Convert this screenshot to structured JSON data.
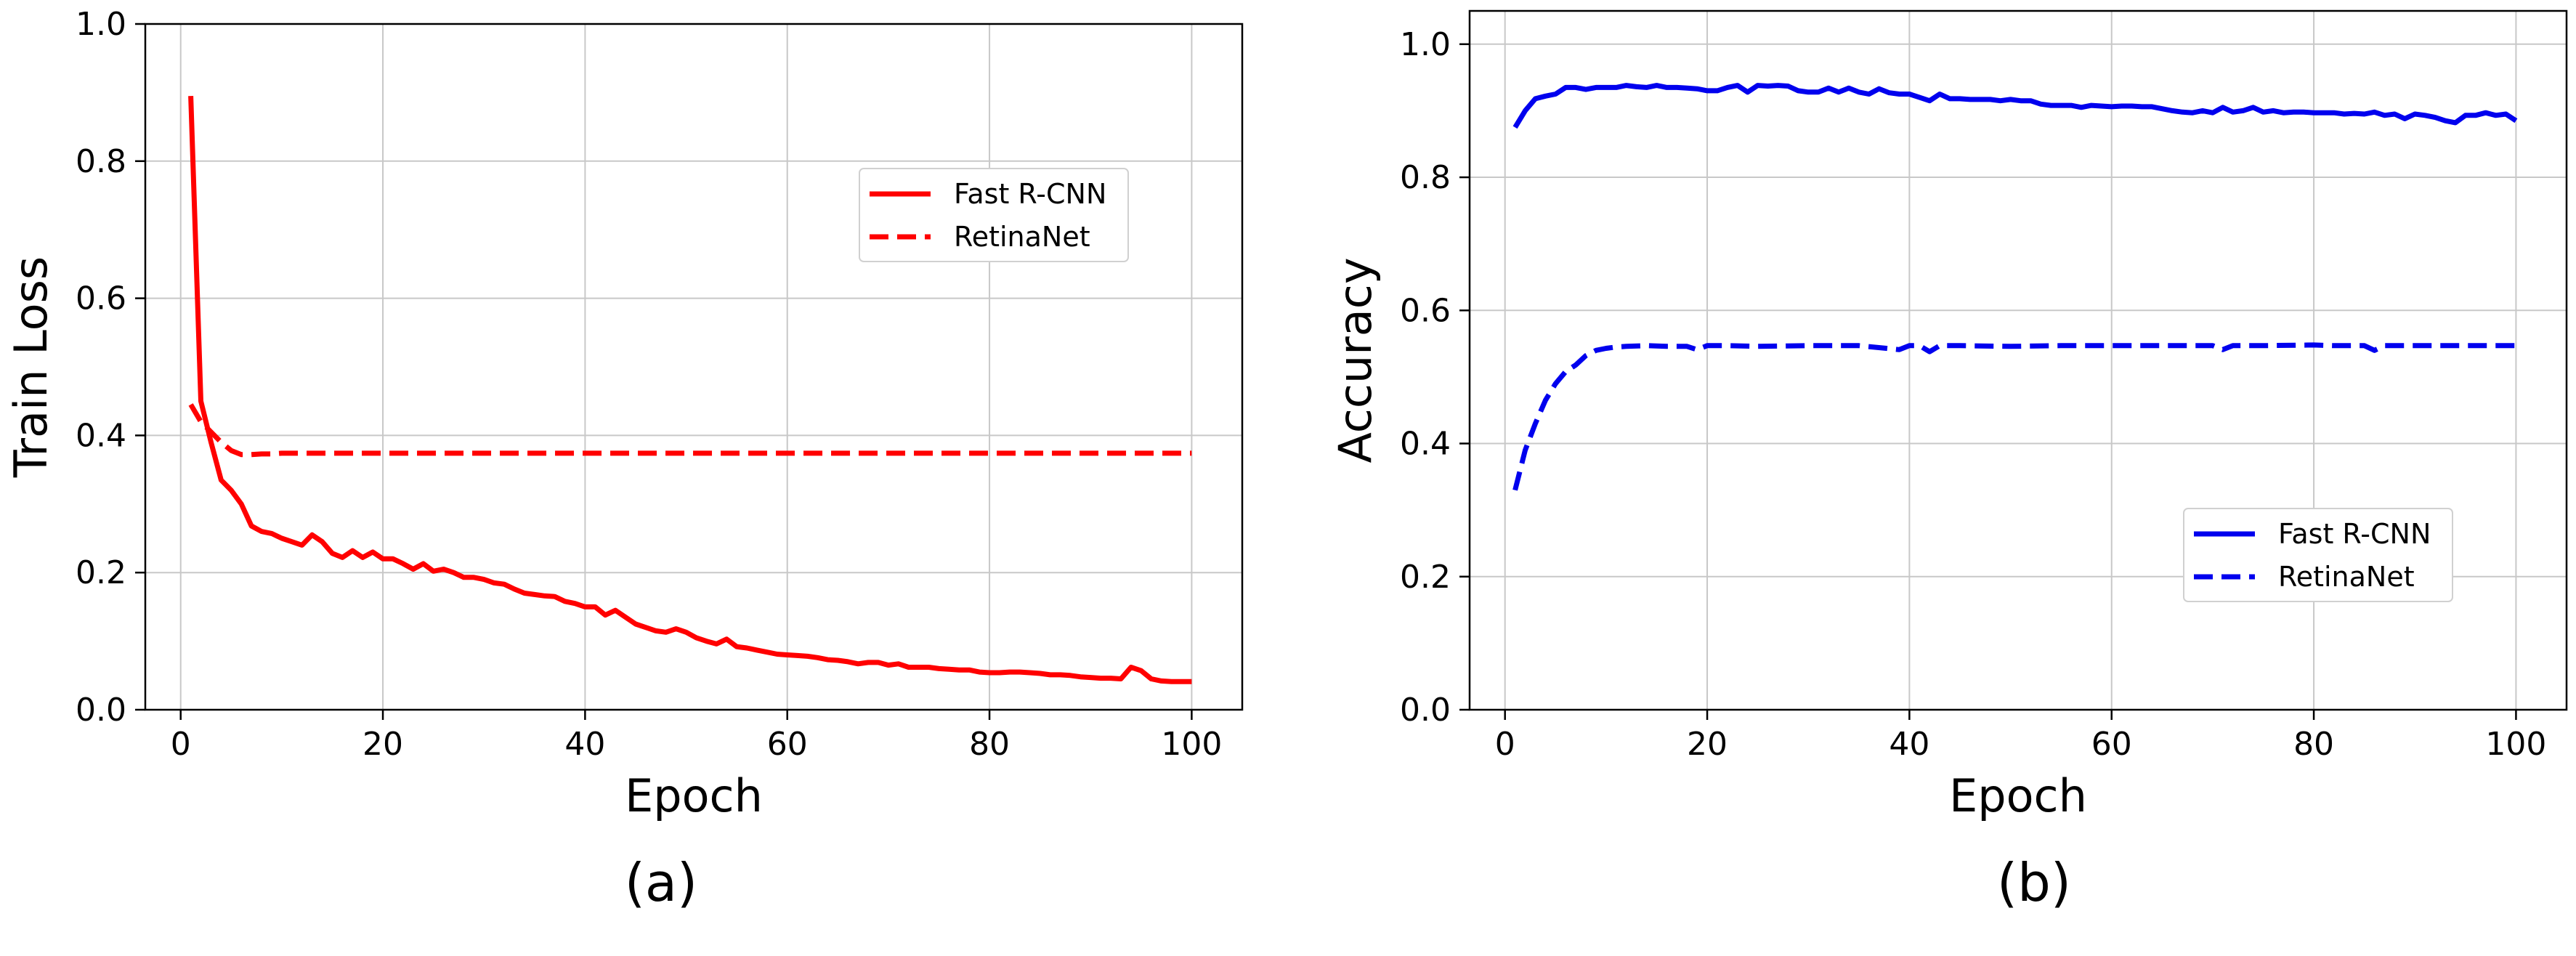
{
  "chart_data": [
    {
      "type": "line",
      "panel_label": "(a)",
      "xlabel": "Epoch",
      "ylabel": "Train Loss",
      "xlim": [
        -3.5,
        105
      ],
      "ylim": [
        0.0,
        1.0
      ],
      "xticks": [
        0,
        20,
        40,
        60,
        80,
        100
      ],
      "yticks": [
        0.0,
        0.2,
        0.4,
        0.6,
        0.8,
        1.0
      ],
      "xtick_labels": [
        "0",
        "20",
        "40",
        "60",
        "80",
        "100"
      ],
      "ytick_labels": [
        "0.0",
        "0.2",
        "0.4",
        "0.6",
        "0.8",
        "1.0"
      ],
      "grid": true,
      "legend_position": "upper-right",
      "color": "#ff0000",
      "series": [
        {
          "name": "Fast R-CNN",
          "style": "solid",
          "x": [
            1,
            2,
            3,
            4,
            5,
            6,
            7,
            8,
            9,
            10,
            11,
            12,
            13,
            14,
            15,
            16,
            17,
            18,
            19,
            20,
            21,
            22,
            23,
            24,
            25,
            26,
            27,
            28,
            29,
            30,
            31,
            32,
            33,
            34,
            35,
            36,
            37,
            38,
            39,
            40,
            41,
            42,
            43,
            44,
            45,
            46,
            47,
            48,
            49,
            50,
            51,
            52,
            53,
            54,
            55,
            56,
            57,
            58,
            59,
            60,
            61,
            62,
            63,
            64,
            65,
            66,
            67,
            68,
            69,
            70,
            71,
            72,
            73,
            74,
            75,
            76,
            77,
            78,
            79,
            80,
            81,
            82,
            83,
            84,
            85,
            86,
            87,
            88,
            89,
            90,
            91,
            92,
            93,
            94,
            95,
            96,
            97,
            98,
            99,
            100
          ],
          "values": [
            0.895,
            0.45,
            0.39,
            0.335,
            0.32,
            0.3,
            0.268,
            0.26,
            0.257,
            0.25,
            0.245,
            0.24,
            0.255,
            0.245,
            0.228,
            0.222,
            0.232,
            0.222,
            0.23,
            0.22,
            0.22,
            0.213,
            0.205,
            0.213,
            0.202,
            0.205,
            0.2,
            0.193,
            0.193,
            0.19,
            0.185,
            0.183,
            0.176,
            0.17,
            0.168,
            0.166,
            0.165,
            0.158,
            0.155,
            0.15,
            0.15,
            0.138,
            0.145,
            0.135,
            0.125,
            0.12,
            0.115,
            0.113,
            0.118,
            0.113,
            0.105,
            0.1,
            0.096,
            0.103,
            0.092,
            0.09,
            0.087,
            0.084,
            0.081,
            0.08,
            0.079,
            0.078,
            0.076,
            0.073,
            0.072,
            0.07,
            0.067,
            0.069,
            0.069,
            0.065,
            0.067,
            0.062,
            0.062,
            0.062,
            0.06,
            0.059,
            0.058,
            0.058,
            0.055,
            0.054,
            0.054,
            0.055,
            0.055,
            0.054,
            0.053,
            0.051,
            0.051,
            0.05,
            0.048,
            0.047,
            0.046,
            0.046,
            0.045,
            0.062,
            0.057,
            0.045,
            0.042,
            0.041,
            0.041,
            0.041
          ]
        },
        {
          "name": "RetinaNet",
          "style": "dashed",
          "x": [
            1,
            2,
            3,
            4,
            5,
            6,
            7,
            8,
            9,
            10,
            12,
            15,
            20,
            30,
            40,
            50,
            60,
            70,
            80,
            90,
            100
          ],
          "values": [
            0.445,
            0.42,
            0.405,
            0.39,
            0.378,
            0.372,
            0.372,
            0.373,
            0.373,
            0.374,
            0.374,
            0.374,
            0.374,
            0.374,
            0.374,
            0.374,
            0.374,
            0.374,
            0.374,
            0.374,
            0.374
          ]
        }
      ]
    },
    {
      "type": "line",
      "panel_label": "(b)",
      "xlabel": "Epoch",
      "ylabel": "Accuracy",
      "xlim": [
        -3.5,
        105
      ],
      "ylim": [
        0.0,
        1.05
      ],
      "xticks": [
        0,
        20,
        40,
        60,
        80,
        100
      ],
      "yticks": [
        0.0,
        0.2,
        0.4,
        0.6,
        0.8,
        1.0
      ],
      "xtick_labels": [
        "0",
        "20",
        "40",
        "60",
        "80",
        "100"
      ],
      "ytick_labels": [
        "0.0",
        "0.2",
        "0.4",
        "0.6",
        "0.8",
        "1.0"
      ],
      "grid": true,
      "legend_position": "center-right",
      "color": "#0000ee",
      "series": [
        {
          "name": "Fast R-CNN",
          "style": "solid",
          "x": [
            1,
            2,
            3,
            4,
            5,
            6,
            7,
            8,
            9,
            10,
            11,
            12,
            13,
            14,
            15,
            16,
            17,
            18,
            19,
            20,
            21,
            22,
            23,
            24,
            25,
            26,
            27,
            28,
            29,
            30,
            31,
            32,
            33,
            34,
            35,
            36,
            37,
            38,
            39,
            40,
            41,
            42,
            43,
            44,
            45,
            46,
            47,
            48,
            49,
            50,
            51,
            52,
            53,
            54,
            55,
            56,
            57,
            58,
            59,
            60,
            61,
            62,
            63,
            64,
            65,
            66,
            67,
            68,
            69,
            70,
            71,
            72,
            73,
            74,
            75,
            76,
            77,
            78,
            79,
            80,
            81,
            82,
            83,
            84,
            85,
            86,
            87,
            88,
            89,
            90,
            91,
            92,
            93,
            94,
            95,
            96,
            97,
            98,
            99,
            100
          ],
          "values": [
            0.875,
            0.9,
            0.918,
            0.922,
            0.925,
            0.935,
            0.935,
            0.932,
            0.935,
            0.935,
            0.935,
            0.938,
            0.936,
            0.935,
            0.938,
            0.935,
            0.935,
            0.934,
            0.933,
            0.93,
            0.93,
            0.935,
            0.938,
            0.928,
            0.938,
            0.937,
            0.938,
            0.937,
            0.93,
            0.928,
            0.928,
            0.934,
            0.928,
            0.934,
            0.928,
            0.925,
            0.933,
            0.927,
            0.925,
            0.925,
            0.92,
            0.915,
            0.925,
            0.918,
            0.918,
            0.917,
            0.917,
            0.917,
            0.915,
            0.917,
            0.915,
            0.915,
            0.91,
            0.908,
            0.908,
            0.908,
            0.905,
            0.908,
            0.907,
            0.906,
            0.907,
            0.907,
            0.906,
            0.906,
            0.903,
            0.9,
            0.898,
            0.897,
            0.9,
            0.897,
            0.905,
            0.898,
            0.9,
            0.905,
            0.898,
            0.9,
            0.897,
            0.898,
            0.898,
            0.897,
            0.897,
            0.897,
            0.895,
            0.896,
            0.895,
            0.898,
            0.893,
            0.895,
            0.888,
            0.895,
            0.893,
            0.89,
            0.885,
            0.882,
            0.893,
            0.893,
            0.897,
            0.893,
            0.895,
            0.885
          ]
        },
        {
          "name": "RetinaNet",
          "style": "dashed",
          "x": [
            1,
            2,
            3,
            4,
            5,
            6,
            7,
            8,
            9,
            10,
            11,
            12,
            14,
            16,
            18,
            19,
            20,
            22,
            25,
            30,
            35,
            39,
            40,
            41,
            42,
            43,
            45,
            50,
            55,
            60,
            65,
            70,
            71,
            72,
            75,
            80,
            82,
            85,
            86,
            87,
            90,
            95,
            100
          ],
          "values": [
            0.33,
            0.39,
            0.43,
            0.465,
            0.49,
            0.508,
            0.518,
            0.532,
            0.54,
            0.543,
            0.545,
            0.546,
            0.547,
            0.546,
            0.546,
            0.541,
            0.547,
            0.547,
            0.546,
            0.547,
            0.547,
            0.541,
            0.547,
            0.547,
            0.538,
            0.547,
            0.547,
            0.546,
            0.547,
            0.547,
            0.547,
            0.547,
            0.541,
            0.547,
            0.547,
            0.548,
            0.547,
            0.547,
            0.54,
            0.547,
            0.547,
            0.547,
            0.547
          ]
        }
      ]
    }
  ]
}
